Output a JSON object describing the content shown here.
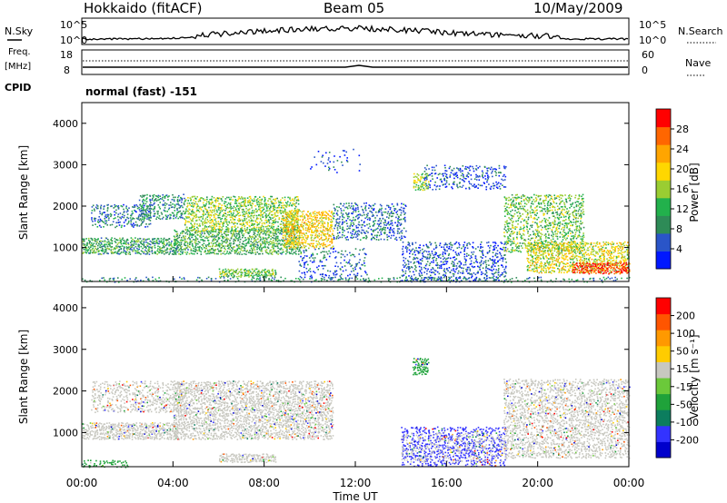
{
  "header": {
    "station": "Hokkaido (fitACF)",
    "beam": "Beam 05",
    "date": "10/May/2009"
  },
  "labels": {
    "nsky": "N.Sky",
    "nsearch": "N.Search",
    "freq": "Freq.",
    "mhz": "[MHz]",
    "nave": "Nave",
    "cpid": "CPID",
    "cpid_value": "normal (fast) -151",
    "nsky_ticks": [
      "10^5",
      "10^0"
    ],
    "nsearch_ticks": [
      "10^5",
      "10^0"
    ],
    "freq_ticks": [
      "18",
      "8"
    ],
    "nave_ticks": [
      "60",
      "0"
    ]
  },
  "colors": {
    "power_scale": [
      "#0018ff",
      "#2a55c8",
      "#2e8b57",
      "#22b14c",
      "#9acd32",
      "#ffd700",
      "#ffa500",
      "#ff6600",
      "#ff0000"
    ],
    "velocity_scale": [
      "#0000cc",
      "#3333ff",
      "#0c7d5e",
      "#1fa23a",
      "#6bc93a",
      "#c8c8c0",
      "#ffcc00",
      "#ff9900",
      "#ff5500",
      "#ff0000"
    ],
    "ground_scatter": "#c8c8c0"
  },
  "chart_data": [
    {
      "type": "heatmap",
      "panel": "power",
      "ylabel": "Slant Range [km]",
      "ylim": [
        180,
        4500
      ],
      "yticks": [
        "1000",
        "2000",
        "3000",
        "4000"
      ],
      "xlim": [
        0,
        24
      ],
      "colorbar_label": "Power [dB]",
      "colorbar_ticks": [
        "28",
        "24",
        "20",
        "16",
        "12",
        "8",
        "4"
      ],
      "colorbar_range": [
        0,
        32
      ],
      "regions": [
        {
          "t0": 0.0,
          "t1": 4.2,
          "r0": 850,
          "r1": 1250,
          "level": 11,
          "dense": 0.9
        },
        {
          "t0": 0.4,
          "t1": 3.0,
          "r0": 1500,
          "r1": 2050,
          "level": 7,
          "dense": 0.5
        },
        {
          "t0": 2.5,
          "t1": 4.5,
          "r0": 1700,
          "r1": 2300,
          "level": 9,
          "dense": 0.6
        },
        {
          "t0": 4.0,
          "t1": 9.6,
          "r0": 850,
          "r1": 1450,
          "level": 12,
          "dense": 0.8
        },
        {
          "t0": 4.5,
          "t1": 9.5,
          "r0": 1400,
          "r1": 2250,
          "level": 15,
          "dense": 0.75
        },
        {
          "t0": 6.0,
          "t1": 8.5,
          "r0": 300,
          "r1": 500,
          "level": 14,
          "dense": 0.9
        },
        {
          "t0": 8.8,
          "t1": 11.0,
          "r0": 1000,
          "r1": 1900,
          "level": 20,
          "dense": 0.8
        },
        {
          "t0": 9.5,
          "t1": 12.5,
          "r0": 200,
          "r1": 1000,
          "level": 6,
          "dense": 0.25
        },
        {
          "t0": 10.0,
          "t1": 12.2,
          "r0": 2800,
          "r1": 3400,
          "level": 5,
          "dense": 0.12
        },
        {
          "t0": 11.0,
          "t1": 14.2,
          "r0": 1200,
          "r1": 2100,
          "level": 7,
          "dense": 0.45
        },
        {
          "t0": 14.5,
          "t1": 15.2,
          "r0": 2400,
          "r1": 2800,
          "level": 16,
          "dense": 0.8
        },
        {
          "t0": 14.0,
          "t1": 18.6,
          "r0": 200,
          "r1": 1150,
          "level": 5,
          "dense": 0.45
        },
        {
          "t0": 15.0,
          "t1": 18.6,
          "r0": 2400,
          "r1": 3000,
          "level": 5,
          "dense": 0.35
        },
        {
          "t0": 18.5,
          "t1": 22.0,
          "r0": 900,
          "r1": 2300,
          "level": 14,
          "dense": 0.55
        },
        {
          "t0": 19.5,
          "t1": 24.0,
          "r0": 400,
          "r1": 1150,
          "level": 18,
          "dense": 0.8
        },
        {
          "t0": 21.5,
          "t1": 24.0,
          "r0": 380,
          "r1": 650,
          "level": 30,
          "dense": 0.95
        },
        {
          "t0": 0.0,
          "t1": 24.0,
          "r0": 180,
          "r1": 300,
          "level": 9,
          "dense": 0.3
        }
      ]
    },
    {
      "type": "heatmap",
      "panel": "velocity",
      "ylabel": "Slant Range [km]",
      "xlabel": "Time UT",
      "ylim": [
        180,
        4500
      ],
      "yticks": [
        "1000",
        "2000",
        "3000",
        "4000"
      ],
      "xlim": [
        0,
        24
      ],
      "xticks": [
        "00:00",
        "04:00",
        "08:00",
        "12:00",
        "16:00",
        "20:00",
        "00:00"
      ],
      "colorbar_label": "Velocity [m s⁻¹]",
      "colorbar_ticks": [
        "200",
        "100",
        "50",
        "15",
        "-15",
        "-50",
        "-100",
        "-200"
      ],
      "regions": [
        {
          "t0": 0.0,
          "t1": 4.2,
          "r0": 850,
          "r1": 1250,
          "level": 5,
          "dense": 0.9
        },
        {
          "t0": 0.4,
          "t1": 4.5,
          "r0": 1500,
          "r1": 2250,
          "level": 5,
          "dense": 0.5
        },
        {
          "t0": 4.0,
          "t1": 11.0,
          "r0": 850,
          "r1": 2250,
          "level": 5,
          "dense": 0.75
        },
        {
          "t0": 6.0,
          "t1": 8.5,
          "r0": 300,
          "r1": 500,
          "level": 5,
          "dense": 0.9
        },
        {
          "t0": 14.5,
          "t1": 15.2,
          "r0": 2400,
          "r1": 2800,
          "level": 3,
          "dense": 0.8
        },
        {
          "t0": 14.0,
          "t1": 18.6,
          "r0": 200,
          "r1": 1150,
          "level": 1,
          "dense": 0.45
        },
        {
          "t0": 14.0,
          "t1": 18.6,
          "r0": 300,
          "r1": 1000,
          "level": 5,
          "dense": 0.3
        },
        {
          "t0": 18.5,
          "t1": 24.0,
          "r0": 400,
          "r1": 2300,
          "level": 5,
          "dense": 0.6
        },
        {
          "t0": 0.0,
          "t1": 2.0,
          "r0": 180,
          "r1": 350,
          "level": 3,
          "dense": 0.5
        }
      ]
    }
  ]
}
